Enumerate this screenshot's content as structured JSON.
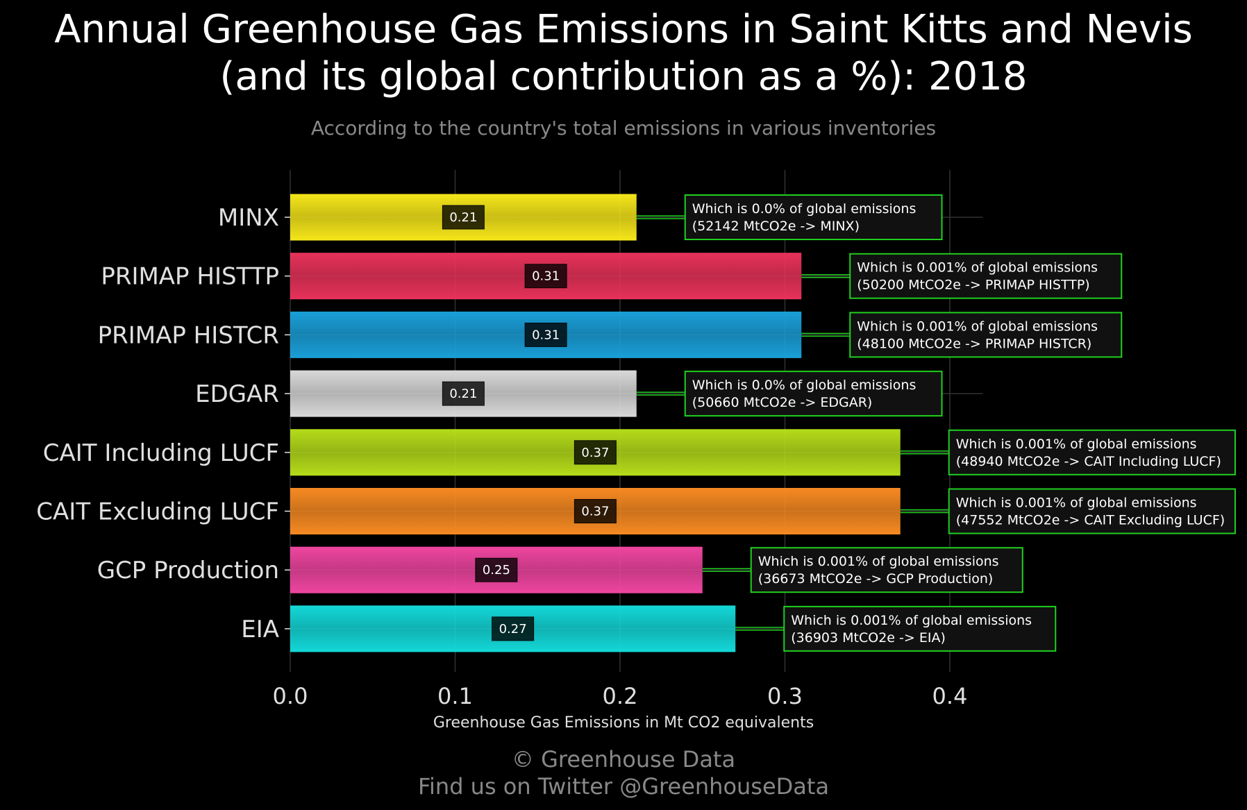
{
  "header": {
    "title_line1": "Annual Greenhouse Gas Emissions in Saint Kitts and Nevis",
    "title_line2": "(and its global contribution as a %): 2018",
    "subtitle": "According to the country's total emissions in various inventories"
  },
  "footer": {
    "line1": "© Greenhouse Data",
    "line2": "Find us on Twitter @GreenhouseData"
  },
  "chart_data": {
    "type": "bar",
    "orientation": "horizontal",
    "xlabel": "Greenhouse Gas Emissions in Mt CO2 equivalents",
    "ylabel": "",
    "xlim": [
      0,
      0.42
    ],
    "xticks": [
      "0.0",
      "0.1",
      "0.2",
      "0.3",
      "0.4"
    ],
    "grid": true,
    "categories": [
      "MINX",
      "PRIMAP HISTTP",
      "PRIMAP HISTCR",
      "EDGAR",
      "CAIT Including LUCF",
      "CAIT Excluding LUCF",
      "GCP Production",
      "EIA"
    ],
    "values": [
      0.21,
      0.31,
      0.31,
      0.21,
      0.37,
      0.37,
      0.25,
      0.27
    ],
    "value_labels": [
      "0.21",
      "0.31",
      "0.31",
      "0.21",
      "0.37",
      "0.37",
      "0.25",
      "0.27"
    ],
    "colors": [
      "#f5e61a",
      "#e8325a",
      "#1a9fd8",
      "#d8d8d8",
      "#b5dc1a",
      "#f78a22",
      "#ef45a0",
      "#14d8d8"
    ],
    "annotations": [
      [
        "Which is 0.0% of global emissions",
        "(52142 MtCO2e -> MINX)"
      ],
      [
        "Which is 0.001% of global emissions",
        "(50200 MtCO2e -> PRIMAP HISTTP)"
      ],
      [
        "Which is 0.001% of global emissions",
        "(48100 MtCO2e -> PRIMAP HISTCR)"
      ],
      [
        "Which is 0.0% of global emissions",
        "(50660 MtCO2e -> EDGAR)"
      ],
      [
        "Which is 0.001% of global emissions",
        "(48940 MtCO2e -> CAIT Including LUCF)"
      ],
      [
        "Which is 0.001% of global emissions",
        "(47552 MtCO2e -> CAIT Excluding LUCF)"
      ],
      [
        "Which is 0.001% of global emissions",
        "(36673 MtCO2e -> GCP Production)"
      ],
      [
        "Which is 0.001% of global emissions",
        "(36903 MtCO2e -> EIA)"
      ]
    ],
    "annotation_border_color": "#1fd01f",
    "axis_text_color": "#e0e0e0",
    "grid_color": "#333333"
  }
}
